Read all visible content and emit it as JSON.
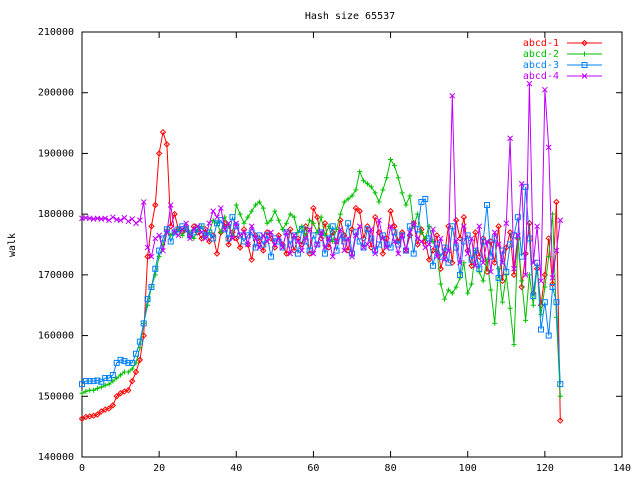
{
  "chart_data": {
    "type": "line",
    "title": "Hash size 65537",
    "y_label": "walk",
    "xlim": [
      0,
      140
    ],
    "xticks": [
      0,
      20,
      40,
      60,
      80,
      100,
      120,
      140
    ],
    "ylim": [
      140000,
      210000
    ],
    "yticks": [
      140000,
      150000,
      160000,
      170000,
      180000,
      190000,
      200000,
      210000
    ],
    "legend": "top-right",
    "grid": false,
    "x": [
      0,
      1,
      2,
      3,
      4,
      5,
      6,
      7,
      8,
      9,
      10,
      11,
      12,
      13,
      14,
      15,
      16,
      17,
      18,
      19,
      20,
      21,
      22,
      23,
      24,
      25,
      26,
      27,
      28,
      29,
      30,
      31,
      32,
      33,
      34,
      35,
      36,
      37,
      38,
      39,
      40,
      41,
      42,
      43,
      44,
      45,
      46,
      47,
      48,
      49,
      50,
      51,
      52,
      53,
      54,
      55,
      56,
      57,
      58,
      59,
      60,
      61,
      62,
      63,
      64,
      65,
      66,
      67,
      68,
      69,
      70,
      71,
      72,
      73,
      74,
      75,
      76,
      77,
      78,
      79,
      80,
      81,
      82,
      83,
      84,
      85,
      86,
      87,
      88,
      89,
      90,
      91,
      92,
      93,
      94,
      95,
      96,
      97,
      98,
      99,
      100,
      101,
      102,
      103,
      104,
      105,
      106,
      107,
      108,
      109,
      110,
      111,
      112,
      113,
      114,
      115,
      116,
      117,
      118,
      119,
      120,
      121,
      122,
      123,
      124
    ],
    "series": [
      {
        "name": "abcd-1",
        "color": "#ff0000",
        "marker": "diamond",
        "values": [
          146300,
          146600,
          146700,
          146800,
          147000,
          147500,
          147800,
          148000,
          148500,
          150000,
          150500,
          150800,
          151000,
          152500,
          154000,
          156000,
          160000,
          173000,
          178000,
          181500,
          190000,
          193500,
          191500,
          178000,
          180000,
          177500,
          177000,
          177500,
          176500,
          178000,
          177000,
          176000,
          177500,
          175500,
          176500,
          173500,
          177000,
          178500,
          175000,
          177000,
          176000,
          174500,
          177500,
          175000,
          172500,
          176500,
          175500,
          174000,
          177000,
          176000,
          174500,
          176500,
          175000,
          173500,
          177500,
          174000,
          176000,
          175000,
          178000,
          173500,
          181000,
          179500,
          176000,
          178500,
          174500,
          177000,
          175500,
          179000,
          176500,
          174000,
          177500,
          181000,
          180500,
          176000,
          178000,
          174500,
          179500,
          177000,
          173500,
          176000,
          180500,
          178000,
          175500,
          177000,
          174000,
          176500,
          178500,
          175000,
          177500,
          175500,
          172500,
          174000,
          176500,
          171000,
          173500,
          178000,
          172000,
          179000,
          176000,
          179500,
          174000,
          171500,
          177000,
          173000,
          176000,
          170500,
          175500,
          172000,
          178000,
          169000,
          174500,
          177000,
          170000,
          176000,
          168000,
          173500,
          178500,
          167000,
          171000,
          165000,
          170000,
          176000,
          168500,
          182000,
          146000
        ]
      },
      {
        "name": "abcd-2",
        "color": "#00c000",
        "marker": "plus",
        "values": [
          150500,
          150800,
          151000,
          151000,
          151300,
          151500,
          151800,
          152000,
          152500,
          153000,
          153500,
          154000,
          154000,
          154500,
          155500,
          158000,
          162000,
          165000,
          168000,
          170000,
          173000,
          175000,
          177500,
          176500,
          177000,
          177500,
          176500,
          178000,
          177000,
          176000,
          177500,
          178000,
          176500,
          177000,
          179000,
          178500,
          177000,
          179500,
          178000,
          176500,
          181500,
          180000,
          178500,
          179500,
          180500,
          181500,
          182000,
          181000,
          178500,
          179000,
          180500,
          179000,
          177500,
          178500,
          180000,
          179500,
          177000,
          178000,
          176500,
          179000,
          178500,
          177000,
          179500,
          176500,
          178000,
          175500,
          177500,
          180000,
          182000,
          182500,
          183000,
          184000,
          187000,
          185500,
          185000,
          184500,
          183500,
          182000,
          184000,
          186000,
          189000,
          188000,
          186000,
          183500,
          181500,
          183000,
          178000,
          180000,
          177000,
          176000,
          178000,
          175500,
          174000,
          168500,
          166000,
          167500,
          167000,
          168000,
          169500,
          172000,
          167000,
          168500,
          174000,
          170500,
          169000,
          172500,
          167500,
          162000,
          171000,
          165500,
          170000,
          164500,
          158500,
          176000,
          169000,
          162500,
          170000,
          165000,
          171500,
          163500,
          168000,
          173000,
          180000,
          163000,
          150000
        ]
      },
      {
        "name": "abcd-3",
        "color": "#0080ff",
        "marker": "square",
        "values": [
          152000,
          152500,
          152500,
          152500,
          152600,
          152400,
          153000,
          153000,
          153500,
          155500,
          156000,
          155800,
          155500,
          155500,
          157000,
          159000,
          162000,
          166000,
          168000,
          171000,
          174000,
          176000,
          177500,
          175500,
          177000,
          177500,
          178000,
          177500,
          176500,
          177000,
          177500,
          178000,
          176500,
          177000,
          176000,
          178500,
          179000,
          177500,
          176000,
          179500,
          178000,
          176500,
          175500,
          176500,
          177000,
          174500,
          176500,
          175000,
          176500,
          173000,
          176000,
          175500,
          174500,
          177000,
          175000,
          176500,
          173500,
          177500,
          175500,
          174000,
          176500,
          175000,
          177000,
          173500,
          176000,
          178000,
          174000,
          176500,
          175500,
          178500,
          173500,
          177000,
          175500,
          174500,
          177500,
          176000,
          174000,
          175000,
          176500,
          175000,
          174500,
          177000,
          175000,
          176500,
          174000,
          178000,
          173500,
          177500,
          182000,
          182500,
          176000,
          171500,
          175000,
          173000,
          174500,
          172000,
          178000,
          174500,
          170000,
          175500,
          176500,
          172500,
          174000,
          171000,
          175500,
          181500,
          173000,
          176000,
          169500,
          174000,
          170500,
          175000,
          176500,
          179500,
          173000,
          184500,
          176000,
          166500,
          172000,
          161000,
          165500,
          160000,
          168000,
          165500,
          152000
        ]
      },
      {
        "name": "abcd-4",
        "color": "#c000ff",
        "marker": "cross",
        "values": [
          179300,
          179400,
          179300,
          179200,
          179300,
          179200,
          179300,
          179000,
          179500,
          179100,
          179000,
          179400,
          178800,
          179200,
          178500,
          179000,
          182000,
          174500,
          173000,
          176000,
          176500,
          174000,
          177000,
          181500,
          177000,
          176500,
          177500,
          178500,
          176000,
          177500,
          178000,
          177000,
          176000,
          178500,
          180500,
          179500,
          181000,
          177500,
          178500,
          176000,
          178500,
          176500,
          177000,
          175000,
          178000,
          176000,
          174500,
          176500,
          175500,
          177000,
          175000,
          176000,
          174500,
          177000,
          173500,
          176500,
          175500,
          174000,
          176000,
          177500,
          173500,
          175000,
          177000,
          174500,
          176000,
          173000,
          175500,
          177500,
          174000,
          176000,
          173000,
          176500,
          178000,
          174500,
          175000,
          177500,
          173500,
          179000,
          176000,
          174500,
          178000,
          175500,
          173500,
          176500,
          174000,
          177000,
          178500,
          176000,
          175500,
          174500,
          175000,
          177500,
          173000,
          176000,
          172500,
          174000,
          199500,
          175500,
          172000,
          178000,
          173500,
          176000,
          171500,
          178000,
          172000,
          175500,
          170500,
          177000,
          175000,
          172000,
          178500,
          192500,
          171000,
          176500,
          185000,
          170000,
          201500,
          172000,
          178000,
          169000,
          200500,
          191000,
          169500,
          174000,
          179000
        ]
      }
    ]
  }
}
